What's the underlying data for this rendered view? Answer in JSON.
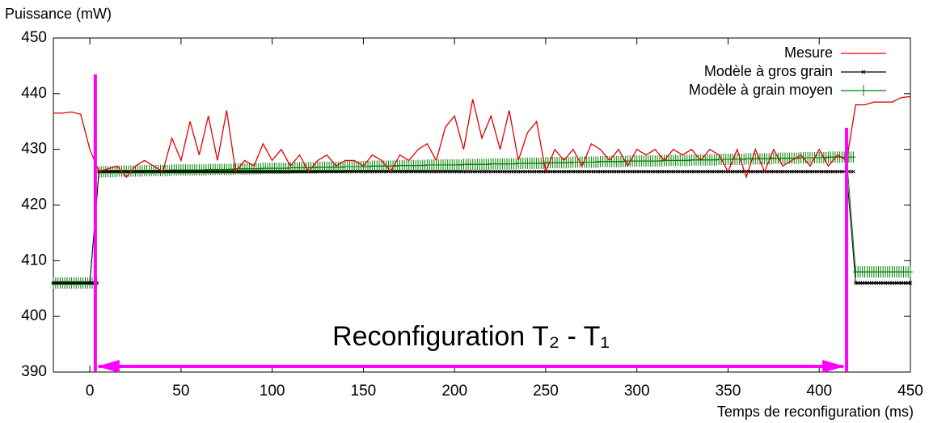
{
  "chart_data": {
    "type": "line",
    "y_label": "Puissance (mW)",
    "x_label": "Temps de reconfiguration (ms)",
    "annotation": "Reconfiguration  T₂ - T₁",
    "annotation_color": "#ff00ff",
    "reconfig_bounds": [
      3,
      415
    ],
    "xlim": [
      -20,
      450
    ],
    "xticks": [
      0,
      50,
      100,
      150,
      200,
      250,
      300,
      350,
      400,
      450
    ],
    "ylim": [
      390,
      450
    ],
    "yticks": [
      390,
      400,
      410,
      420,
      430,
      440,
      450
    ],
    "grid": false,
    "legend": "top-right",
    "x": [
      -20,
      -15,
      -10,
      -5,
      0,
      5,
      10,
      15,
      20,
      25,
      30,
      35,
      40,
      45,
      50,
      55,
      60,
      65,
      70,
      75,
      80,
      85,
      90,
      95,
      100,
      105,
      110,
      115,
      120,
      125,
      130,
      135,
      140,
      145,
      150,
      155,
      160,
      165,
      170,
      175,
      180,
      185,
      190,
      195,
      200,
      205,
      210,
      215,
      220,
      225,
      230,
      235,
      240,
      245,
      250,
      255,
      260,
      265,
      270,
      275,
      280,
      285,
      290,
      295,
      300,
      305,
      310,
      315,
      320,
      325,
      330,
      335,
      340,
      345,
      350,
      355,
      360,
      365,
      370,
      375,
      380,
      385,
      390,
      395,
      400,
      405,
      410,
      415,
      420,
      425,
      430,
      435,
      440,
      445,
      450
    ],
    "series": [
      {
        "name": "Mesure",
        "color": "#e00000",
        "marker": "none",
        "values": [
          436.5,
          436.5,
          436.7,
          436.3,
          430,
          426,
          426.5,
          427,
          425,
          427,
          428,
          427,
          426,
          432,
          428,
          435,
          429,
          436,
          428,
          437,
          426,
          428,
          427,
          431,
          428,
          430,
          427,
          429,
          426,
          428,
          429,
          427,
          428,
          428,
          427,
          429,
          428,
          426,
          429,
          428,
          430,
          431,
          428,
          434,
          436,
          430,
          439,
          432,
          436,
          430,
          437,
          428,
          433,
          435,
          426,
          430,
          428,
          430,
          427,
          431,
          430,
          428,
          430,
          427,
          430,
          429,
          430,
          428,
          430,
          429,
          430,
          428,
          430,
          429,
          426,
          430,
          425,
          430,
          426,
          430,
          427,
          428,
          429,
          427,
          430,
          427,
          429,
          428,
          438,
          438,
          438.5,
          438.5,
          438.5,
          439.3,
          439.5
        ]
      },
      {
        "name": "Modèle à gros grain",
        "color": "#000000",
        "marker": "x",
        "values": [
          406,
          406,
          406,
          406,
          406,
          426,
          426,
          426,
          426,
          426,
          426,
          426,
          426,
          426,
          426,
          426,
          426,
          426,
          426,
          426,
          426,
          426,
          426,
          426,
          426,
          426,
          426,
          426,
          426,
          426,
          426,
          426,
          426,
          426,
          426,
          426,
          426,
          426,
          426,
          426,
          426,
          426,
          426,
          426,
          426,
          426,
          426,
          426,
          426,
          426,
          426,
          426,
          426,
          426,
          426,
          426,
          426,
          426,
          426,
          426,
          426,
          426,
          426,
          426,
          426,
          426,
          426,
          426,
          426,
          426,
          426,
          426,
          426,
          426,
          426,
          426,
          426,
          426,
          426,
          426,
          426,
          426,
          426,
          426,
          426,
          426,
          426,
          426,
          406,
          406,
          406,
          406,
          406,
          406,
          406
        ]
      },
      {
        "name": "Modèle à grain moyen",
        "color": "#008000",
        "marker": "+",
        "values": [
          406,
          406,
          406,
          406,
          406,
          426.0,
          426.0,
          426.1,
          426.1,
          426.1,
          426.2,
          426.2,
          426.2,
          426.3,
          426.3,
          426.3,
          426.3,
          426.4,
          426.4,
          426.4,
          426.5,
          426.5,
          426.5,
          426.6,
          426.6,
          426.6,
          426.7,
          426.7,
          426.7,
          426.8,
          426.8,
          426.8,
          426.9,
          426.9,
          426.9,
          427.0,
          427.0,
          427.0,
          427.1,
          427.1,
          427.1,
          427.2,
          427.2,
          427.2,
          427.2,
          427.3,
          427.3,
          427.3,
          427.4,
          427.4,
          427.4,
          427.5,
          427.5,
          427.5,
          427.6,
          427.6,
          427.6,
          427.7,
          427.7,
          427.7,
          427.8,
          427.8,
          427.8,
          427.9,
          427.9,
          427.9,
          427.9,
          428.0,
          428.0,
          428.0,
          428.1,
          428.1,
          428.1,
          428.2,
          428.2,
          428.2,
          428.3,
          428.3,
          428.3,
          428.4,
          428.4,
          428.4,
          428.5,
          428.5,
          428.5,
          428.6,
          428.6,
          428.6,
          408,
          408,
          408,
          408,
          408,
          408,
          408
        ]
      }
    ]
  }
}
